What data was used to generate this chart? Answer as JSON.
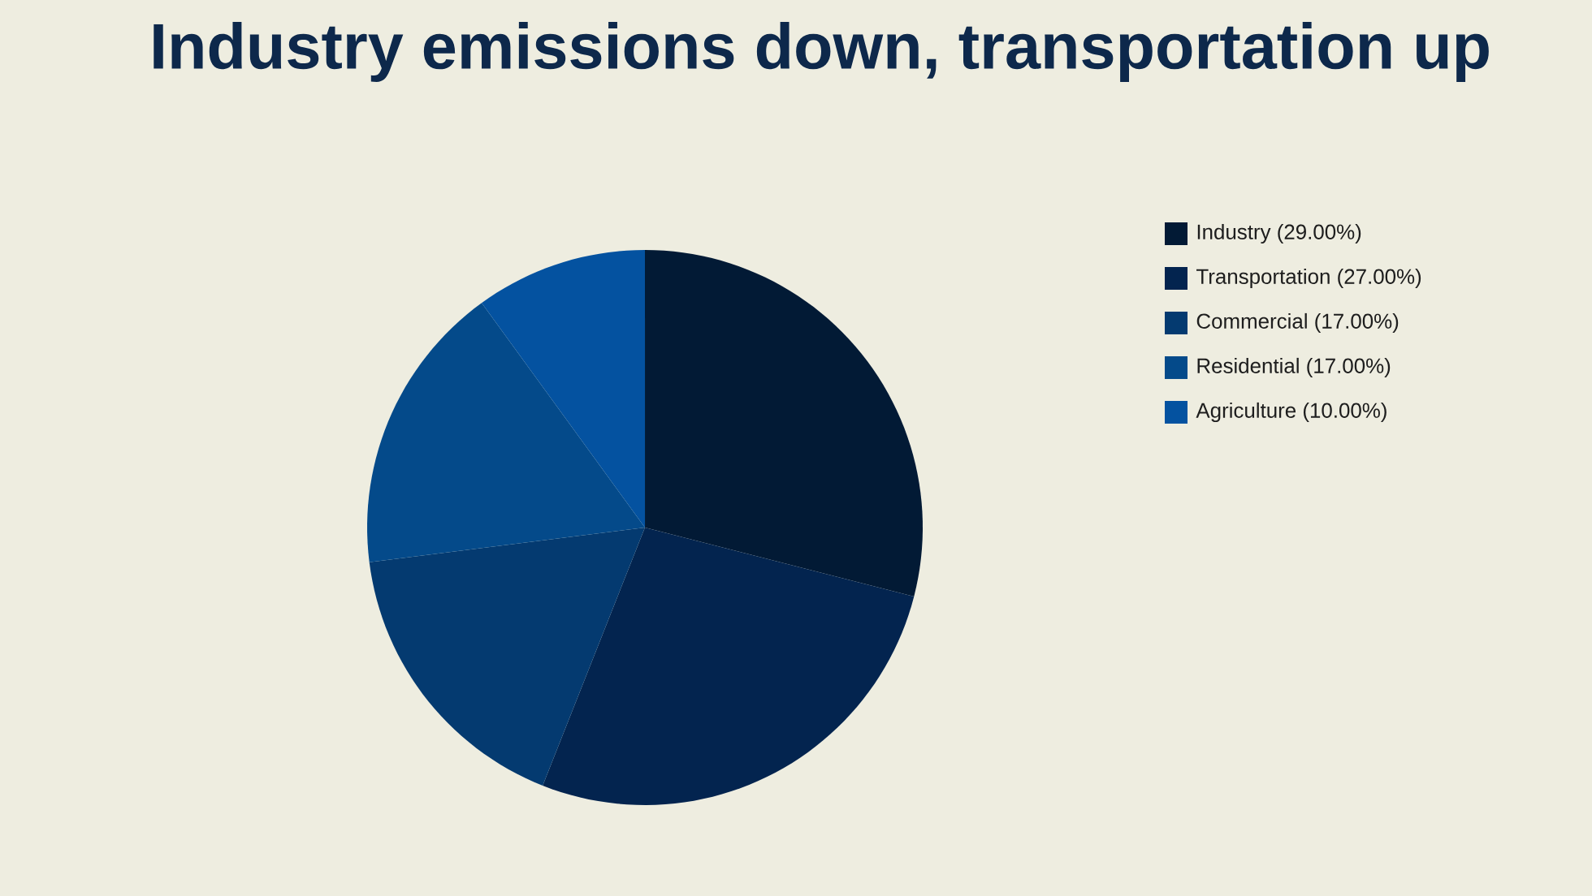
{
  "chart_data": {
    "type": "pie",
    "title": "Industry emissions down, transportation up",
    "categories": [
      "Industry (29.00%)",
      "Transportation (27.00%)",
      "Commercial (17.00%)",
      "Residential (17.00%)",
      "Agriculture (10.00%)"
    ],
    "values": [
      29,
      27,
      17,
      17,
      10
    ],
    "colors": [
      "#021a35",
      "#03244f",
      "#043a70",
      "#044a8a",
      "#0452a0"
    ],
    "legend": "top right"
  }
}
